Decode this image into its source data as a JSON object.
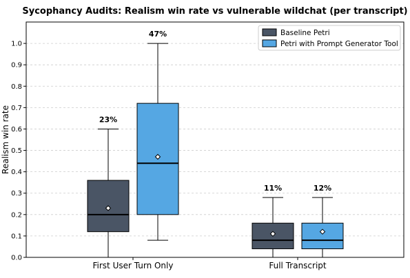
{
  "chart_data": {
    "type": "box",
    "title": "Sycophancy Audits: Realism win rate vs vulnerable wildchat (per transcript)",
    "xlabel": "",
    "ylabel": "Realism win rate",
    "ylim": [
      0,
      1.1
    ],
    "yticks": [
      "0.0",
      "0.1",
      "0.2",
      "0.3",
      "0.4",
      "0.5",
      "0.6",
      "0.7",
      "0.8",
      "0.9",
      "1.0"
    ],
    "grid": "horizontal dashed",
    "legend_position": "top-right",
    "categories": [
      "First User Turn Only",
      "Full Transcript"
    ],
    "series": [
      {
        "name": "Baseline Petri",
        "color": "#4a5565",
        "boxes": [
          {
            "min": 0.0,
            "q1": 0.12,
            "median": 0.2,
            "q3": 0.36,
            "max": 0.6,
            "mean": 0.23,
            "label": "23%"
          },
          {
            "min": 0.0,
            "q1": 0.04,
            "median": 0.08,
            "q3": 0.16,
            "max": 0.28,
            "mean": 0.11,
            "label": "11%"
          }
        ]
      },
      {
        "name": "Petri with Prompt Generator Tool",
        "color": "#55a7e3",
        "boxes": [
          {
            "min": 0.08,
            "q1": 0.2,
            "median": 0.44,
            "q3": 0.72,
            "max": 1.0,
            "mean": 0.47,
            "label": "47%"
          },
          {
            "min": 0.0,
            "q1": 0.04,
            "median": 0.08,
            "q3": 0.16,
            "max": 0.28,
            "mean": 0.12,
            "label": "12%"
          }
        ]
      }
    ]
  }
}
